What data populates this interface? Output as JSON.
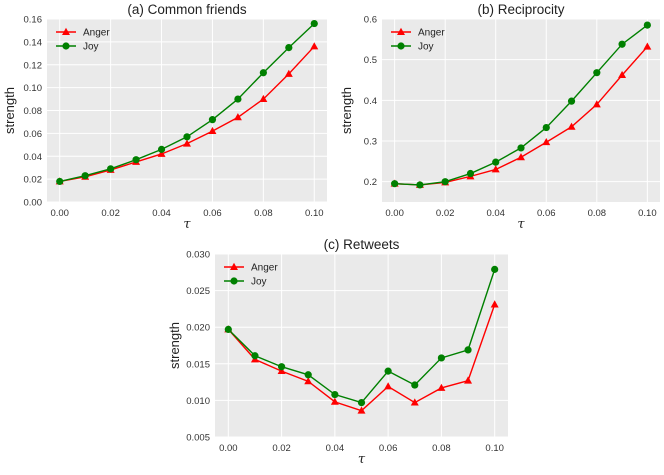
{
  "chart_data": [
    {
      "id": "a",
      "type": "line",
      "title": "(a) Common friends",
      "xlabel": "τ",
      "ylabel": "strength",
      "x": [
        0.0,
        0.01,
        0.02,
        0.03,
        0.04,
        0.05,
        0.06,
        0.07,
        0.08,
        0.09,
        0.1
      ],
      "xlim": [
        -0.005,
        0.105
      ],
      "ylim": [
        0.0,
        0.16
      ],
      "xticks": [
        0.0,
        0.02,
        0.04,
        0.06,
        0.08,
        0.1
      ],
      "xtick_labels": [
        "0.00",
        "0.02",
        "0.04",
        "0.06",
        "0.08",
        "0.10"
      ],
      "yticks": [
        0.0,
        0.02,
        0.04,
        0.06,
        0.08,
        0.1,
        0.12,
        0.14,
        0.16
      ],
      "ytick_labels": [
        "0.00",
        "0.02",
        "0.04",
        "0.06",
        "0.08",
        "0.10",
        "0.12",
        "0.14",
        "0.16"
      ],
      "grid": true,
      "legend_position": "top-left",
      "series": [
        {
          "name": "Anger",
          "color": "#ff0000",
          "marker": "triangle",
          "values": [
            0.018,
            0.022,
            0.028,
            0.035,
            0.042,
            0.051,
            0.062,
            0.074,
            0.09,
            0.112,
            0.136
          ]
        },
        {
          "name": "Joy",
          "color": "#008000",
          "marker": "circle",
          "values": [
            0.018,
            0.023,
            0.029,
            0.037,
            0.046,
            0.057,
            0.072,
            0.09,
            0.113,
            0.135,
            0.156
          ]
        }
      ]
    },
    {
      "id": "b",
      "type": "line",
      "title": "(b) Reciprocity",
      "xlabel": "τ",
      "ylabel": "strength",
      "x": [
        0.0,
        0.01,
        0.02,
        0.03,
        0.04,
        0.05,
        0.06,
        0.07,
        0.08,
        0.09,
        0.1
      ],
      "xlim": [
        -0.005,
        0.105
      ],
      "ylim": [
        0.15,
        0.6
      ],
      "xticks": [
        0.0,
        0.02,
        0.04,
        0.06,
        0.08,
        0.1
      ],
      "xtick_labels": [
        "0.00",
        "0.02",
        "0.04",
        "0.06",
        "0.08",
        "0.10"
      ],
      "yticks": [
        0.2,
        0.3,
        0.4,
        0.5,
        0.6
      ],
      "ytick_labels": [
        "0.2",
        "0.3",
        "0.4",
        "0.5",
        "0.6"
      ],
      "grid": true,
      "legend_position": "top-left",
      "series": [
        {
          "name": "Anger",
          "color": "#ff0000",
          "marker": "triangle",
          "values": [
            0.195,
            0.192,
            0.198,
            0.213,
            0.23,
            0.26,
            0.297,
            0.335,
            0.39,
            0.462,
            0.532
          ]
        },
        {
          "name": "Joy",
          "color": "#008000",
          "marker": "circle",
          "values": [
            0.195,
            0.192,
            0.2,
            0.22,
            0.248,
            0.283,
            0.333,
            0.398,
            0.468,
            0.538,
            0.585
          ]
        }
      ]
    },
    {
      "id": "c",
      "type": "line",
      "title": "(c) Retweets",
      "xlabel": "τ",
      "ylabel": "strength",
      "x": [
        0.0,
        0.01,
        0.02,
        0.03,
        0.04,
        0.05,
        0.06,
        0.07,
        0.08,
        0.09,
        0.1
      ],
      "xlim": [
        -0.005,
        0.105
      ],
      "ylim": [
        0.005,
        0.03
      ],
      "xticks": [
        0.0,
        0.02,
        0.04,
        0.06,
        0.08,
        0.1
      ],
      "xtick_labels": [
        "0.00",
        "0.02",
        "0.04",
        "0.06",
        "0.08",
        "0.10"
      ],
      "yticks": [
        0.005,
        0.01,
        0.015,
        0.02,
        0.025,
        0.03
      ],
      "ytick_labels": [
        "0.005",
        "0.010",
        "0.015",
        "0.020",
        "0.025",
        "0.030"
      ],
      "grid": true,
      "legend_position": "top-left",
      "series": [
        {
          "name": "Anger",
          "color": "#ff0000",
          "marker": "triangle",
          "values": [
            0.0197,
            0.0156,
            0.014,
            0.0126,
            0.0098,
            0.0086,
            0.0119,
            0.0097,
            0.0117,
            0.0127,
            0.0231
          ]
        },
        {
          "name": "Joy",
          "color": "#008000",
          "marker": "circle",
          "values": [
            0.0197,
            0.0161,
            0.0146,
            0.0135,
            0.0108,
            0.0097,
            0.014,
            0.0121,
            0.0158,
            0.0169,
            0.0279
          ]
        }
      ]
    }
  ]
}
